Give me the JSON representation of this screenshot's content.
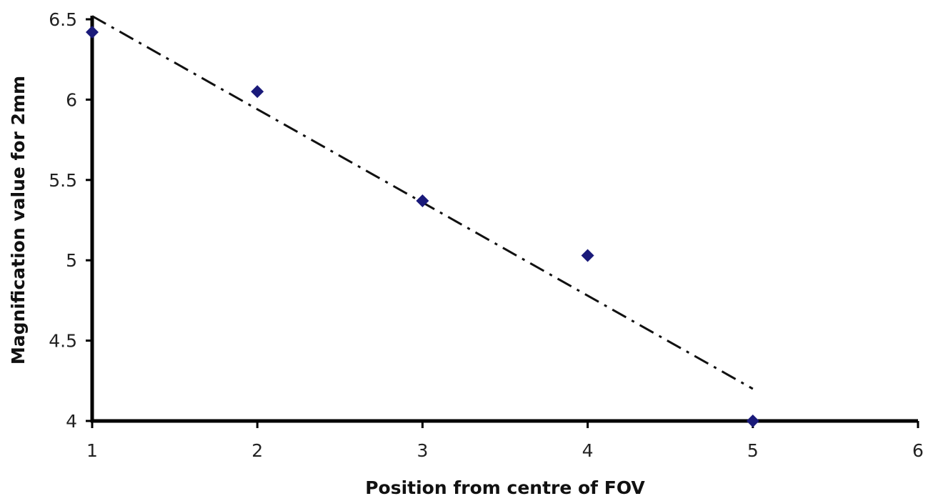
{
  "chart_data": {
    "type": "scatter",
    "title": "",
    "xlabel": "Position from centre of FOV",
    "ylabel": "Magnification value for 2mm",
    "xlim": [
      1,
      6
    ],
    "ylim": [
      4,
      6.5
    ],
    "x_ticks": [
      "1",
      "2",
      "3",
      "4",
      "5",
      "6"
    ],
    "y_ticks": [
      "4",
      "4.5",
      "5",
      "5.5",
      "6",
      "6.5"
    ],
    "grid": false,
    "legend": "none",
    "series": [
      {
        "x": [
          1,
          2,
          3,
          4,
          5
        ],
        "y": [
          6.42,
          6.05,
          5.37,
          5.03,
          4.0
        ],
        "marker": "diamond",
        "color": "#1a1a7a"
      }
    ],
    "trendline": {
      "style": "dash-dot",
      "color": "#111111",
      "x": [
        1,
        5
      ],
      "y": [
        6.52,
        4.2
      ]
    }
  }
}
